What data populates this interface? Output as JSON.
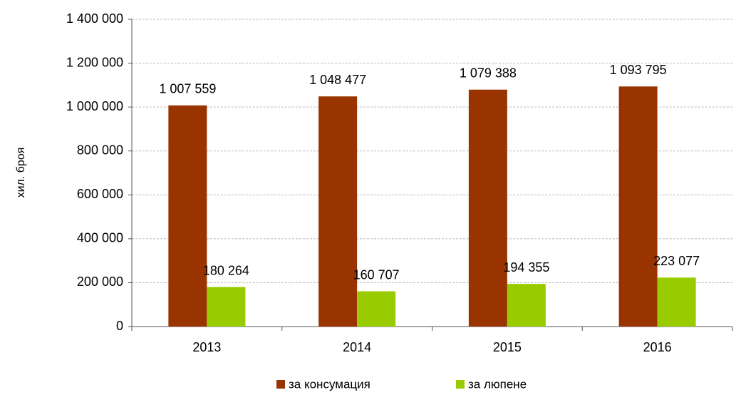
{
  "chart_data": {
    "type": "bar",
    "y_label": "хил. броя",
    "categories": [
      "2013",
      "2014",
      "2015",
      "2016"
    ],
    "series": [
      {
        "name": "за консумация",
        "color": "#993300",
        "values": [
          1007559,
          1048477,
          1079388,
          1093795
        ],
        "value_labels": [
          "1 007 559",
          "1 048 477",
          "1 079 388",
          "1 093 795"
        ]
      },
      {
        "name": "за люпене",
        "color": "#99cc00",
        "values": [
          180264,
          160707,
          194355,
          223077
        ],
        "value_labels": [
          "180 264",
          "160 707",
          "194 355",
          "223 077"
        ]
      }
    ],
    "ylim": [
      0,
      1400000
    ],
    "yticks": [
      0,
      {
        "value": 200000,
        "label": "200 000"
      },
      {
        "value": 400000,
        "label": "400 000"
      },
      {
        "value": 600000,
        "label": "600 000"
      },
      {
        "value": 800000,
        "label": "800 000"
      },
      {
        "value": 1000000,
        "label": "1 000 000"
      },
      {
        "value": 1200000,
        "label": "1 200 000"
      },
      {
        "value": 1400000,
        "label": "1 400 000"
      }
    ],
    "grid": true,
    "legend": "bottom"
  }
}
